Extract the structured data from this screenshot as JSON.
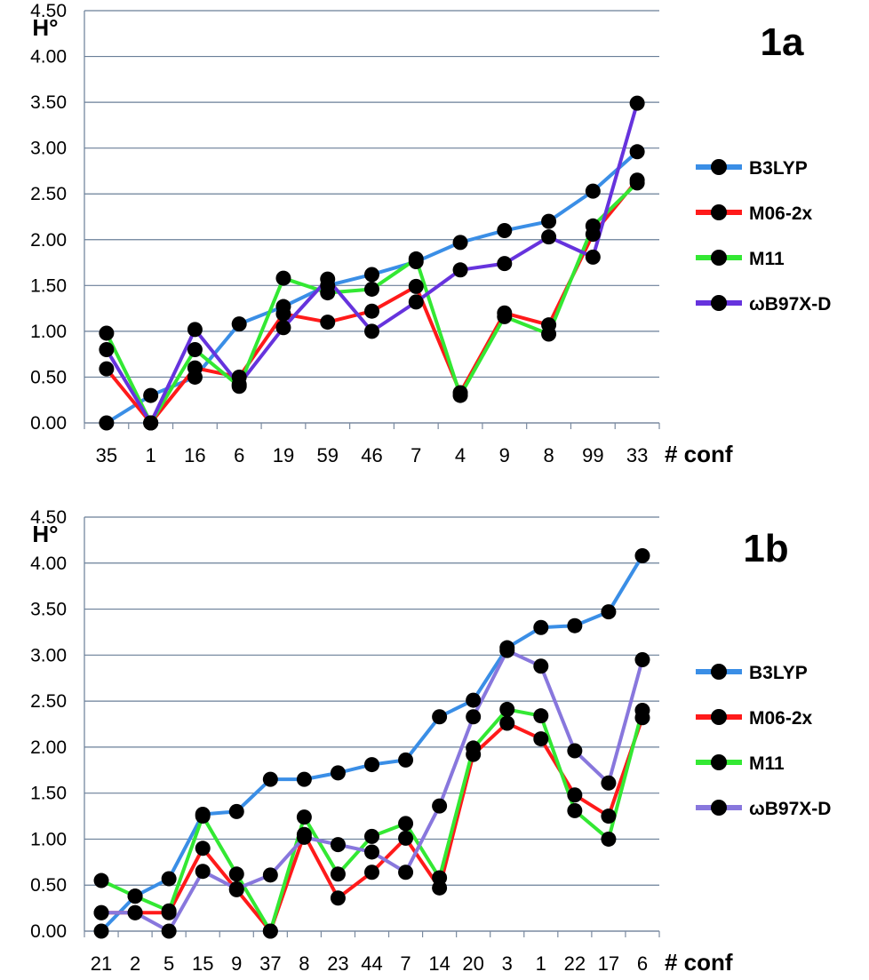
{
  "chart_data": [
    {
      "type": "line",
      "panel_label": "1a",
      "ylabel": "H°",
      "xlabel": "# conf",
      "ylim": [
        0,
        4.5
      ],
      "yticks": [
        "0.00",
        "0.50",
        "1.00",
        "1.50",
        "2.00",
        "2.50",
        "3.00",
        "3.50",
        "4.00",
        "4.50"
      ],
      "grid": true,
      "legend_position": "right",
      "categories": [
        "35",
        "1",
        "16",
        "6",
        "19",
        "59",
        "46",
        "7",
        "4",
        "9",
        "8",
        "99",
        "33"
      ],
      "series": [
        {
          "name": "B3LYP",
          "color": "#3a8ee6",
          "values": [
            0.0,
            0.3,
            0.5,
            1.08,
            1.27,
            1.5,
            1.62,
            1.76,
            1.97,
            2.1,
            2.2,
            2.53,
            2.96
          ]
        },
        {
          "name": "M06-2x",
          "color": "#ff1a1a",
          "values": [
            0.59,
            0.0,
            0.6,
            0.5,
            1.19,
            1.1,
            1.22,
            1.49,
            0.33,
            1.2,
            1.07,
            2.06,
            2.65
          ]
        },
        {
          "name": "M11",
          "color": "#33e833",
          "values": [
            0.98,
            0.0,
            0.8,
            0.4,
            1.58,
            1.42,
            1.46,
            1.79,
            0.3,
            1.16,
            0.97,
            2.15,
            2.62
          ]
        },
        {
          "name": "ωB97X-D",
          "color": "#6633dd",
          "values": [
            0.8,
            0.0,
            1.02,
            0.42,
            1.04,
            1.57,
            1.0,
            1.32,
            1.67,
            1.74,
            2.03,
            1.81,
            3.49
          ]
        }
      ]
    },
    {
      "type": "line",
      "panel_label": "1b",
      "ylabel": "H°",
      "xlabel": "# conf",
      "ylim": [
        0,
        4.5
      ],
      "yticks": [
        "0.00",
        "0.50",
        "1.00",
        "1.50",
        "2.00",
        "2.50",
        "3.00",
        "3.50",
        "4.00",
        "4.50"
      ],
      "grid": true,
      "legend_position": "right",
      "categories": [
        "21",
        "2",
        "5",
        "15",
        "9",
        "37",
        "8",
        "23",
        "44",
        "7",
        "14",
        "20",
        "3",
        "1",
        "22",
        "17",
        "6"
      ],
      "series": [
        {
          "name": "B3LYP",
          "color": "#3a8ee6",
          "values": [
            0.0,
            0.38,
            0.57,
            1.27,
            1.3,
            1.65,
            1.65,
            1.72,
            1.81,
            1.86,
            2.33,
            2.51,
            3.08,
            3.3,
            3.32,
            3.47,
            4.08
          ]
        },
        {
          "name": "M06-2x",
          "color": "#ff1a1a",
          "values": [
            0.2,
            0.2,
            0.2,
            0.9,
            0.45,
            0.0,
            1.05,
            0.36,
            0.64,
            1.01,
            0.47,
            1.92,
            2.26,
            2.09,
            1.48,
            1.25,
            2.32
          ]
        },
        {
          "name": "M11",
          "color": "#33e833",
          "values": [
            0.55,
            0.38,
            0.22,
            1.25,
            0.62,
            0.0,
            1.24,
            0.62,
            1.03,
            1.17,
            0.58,
            1.99,
            2.41,
            2.34,
            1.31,
            1.0,
            2.4
          ]
        },
        {
          "name": "ωB97X-D",
          "color": "#8877dd",
          "values": [
            0.2,
            0.2,
            0.0,
            0.65,
            0.46,
            0.61,
            1.02,
            0.94,
            0.86,
            0.64,
            1.36,
            2.33,
            3.05,
            2.88,
            1.96,
            1.61,
            2.95
          ]
        }
      ]
    }
  ]
}
